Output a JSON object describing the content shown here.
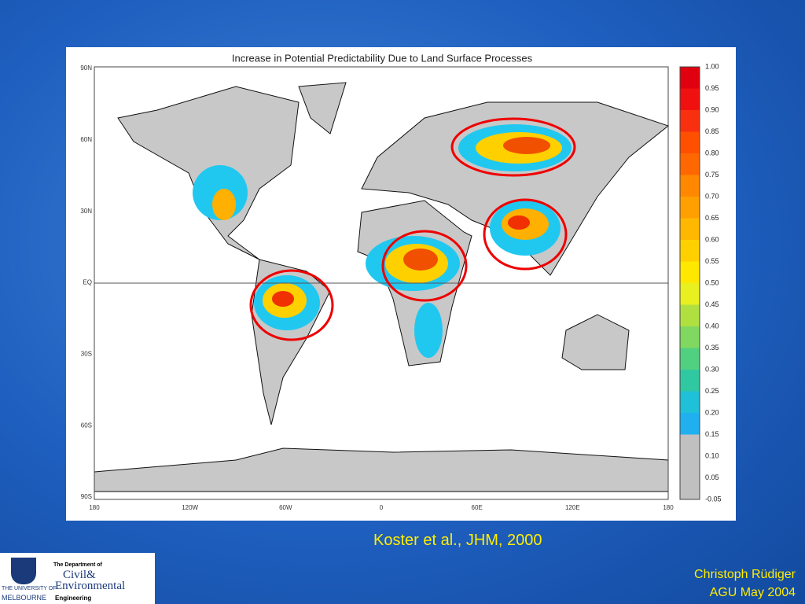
{
  "map_title": "Increase in Potential Predictability Due to Land Surface Processes",
  "lat_labels": [
    "90N",
    "60N",
    "30N",
    "EQ",
    "30S",
    "60S",
    "90S"
  ],
  "lon_labels": [
    "180",
    "120W",
    "60W",
    "0",
    "60E",
    "120E",
    "180"
  ],
  "colorbar_labels": [
    "1.00",
    "0.95",
    "0.90",
    "0.85",
    "0.80",
    "0.75",
    "0.70",
    "0.65",
    "0.60",
    "0.55",
    "0.50",
    "0.45",
    "0.40",
    "0.35",
    "0.30",
    "0.25",
    "0.20",
    "0.15",
    "0.10",
    "0.05",
    "-0.05"
  ],
  "citation": "Koster et al., JHM, 2000",
  "author": "Christoph Rüdiger",
  "event": "AGU May 2004",
  "logo": {
    "university_line1": "THE UNIVERSITY OF",
    "university_line2": "MELBOURNE",
    "dept_intro": "The Department of",
    "dept_line1": "Civil&",
    "dept_line2": "Environmental",
    "dept_line3": "Engineering"
  }
}
